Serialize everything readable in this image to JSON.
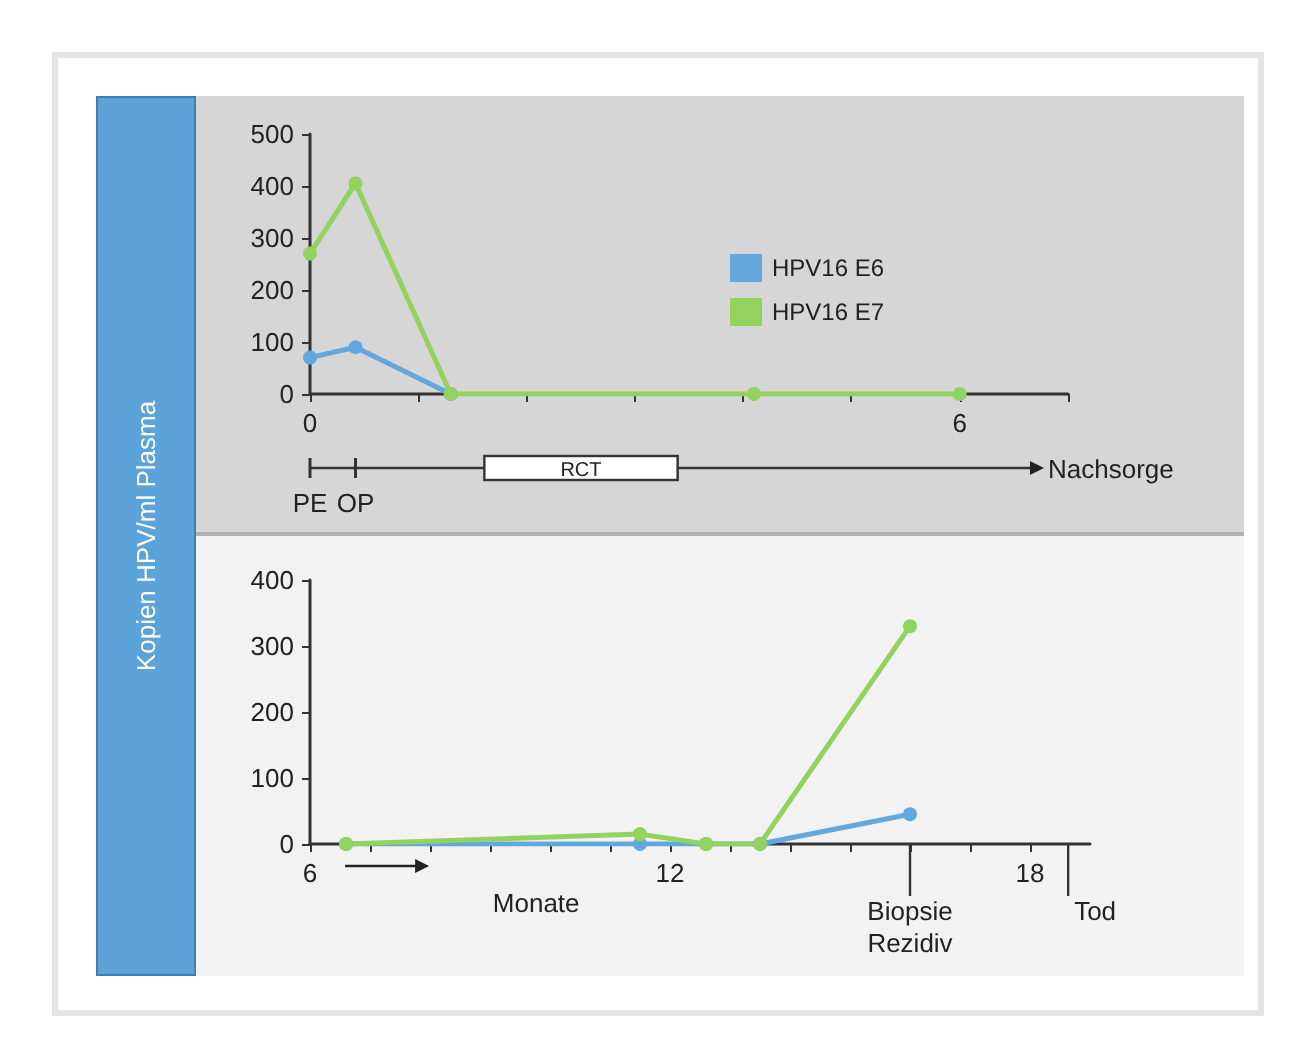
{
  "chart_data": [
    {
      "type": "line",
      "ylabel": "Kopien HPV/ml Plasma",
      "xlim": [
        0,
        7
      ],
      "xticks": [
        0,
        {
          "value": 1,
          "label": null
        },
        {
          "value": 2,
          "label": null
        },
        {
          "value": 3,
          "label": null
        },
        {
          "value": 4,
          "label": null
        },
        {
          "value": 5,
          "label": null
        },
        6,
        {
          "value": 7,
          "label": null
        }
      ],
      "ylim": [
        0,
        500
      ],
      "yticks": [
        0,
        100,
        200,
        300,
        400,
        500
      ],
      "grid": false,
      "legend": "right",
      "marker": "circle",
      "line_style": "solid",
      "series": [
        {
          "name": "HPV16 E6",
          "color": "#62a8de",
          "x": [
            0,
            0.42,
            1.3
          ],
          "values": [
            70,
            90,
            0
          ]
        },
        {
          "name": "HPV16 E7",
          "color": "#92d25e",
          "x": [
            0,
            0.42,
            1.3,
            4.1,
            6
          ],
          "values": [
            270,
            405,
            0,
            0,
            0
          ]
        }
      ],
      "annotations": [
        {
          "text": "PE",
          "x": 0
        },
        {
          "text": "OP",
          "x": 0.42
        },
        "RCT",
        "Nachsorge"
      ]
    },
    {
      "type": "line",
      "xlim": [
        6,
        19
      ],
      "xticks": [
        6,
        {
          "value": 7,
          "label": null
        },
        {
          "value": 8,
          "label": null
        },
        {
          "value": 9,
          "label": null
        },
        {
          "value": 10,
          "label": null
        },
        {
          "value": 11,
          "label": null
        },
        12,
        {
          "value": 13,
          "label": null
        },
        {
          "value": 14,
          "label": null
        },
        {
          "value": 15,
          "label": null
        },
        {
          "value": 16,
          "label": null
        },
        {
          "value": 17,
          "label": null
        },
        18
      ],
      "ylim": [
        0,
        400
      ],
      "yticks": [
        0,
        100,
        200,
        300,
        400
      ],
      "grid": false,
      "legend": false,
      "marker": "circle",
      "line_style": "solid",
      "series": [
        {
          "color": "#62a8de",
          "x": [
            6.6,
            11.5,
            12.6,
            13.5,
            16
          ],
          "values": [
            0,
            0,
            0,
            0,
            45
          ]
        },
        {
          "color": "#92d25e",
          "x": [
            6.6,
            11.5,
            12.6,
            13.5,
            16
          ],
          "values": [
            0,
            15,
            0,
            0,
            330
          ]
        }
      ],
      "annotations": [
        "Monate",
        {
          "text": "Biopsie Rezidiv",
          "x": 16
        },
        "Tod"
      ]
    }
  ]
}
